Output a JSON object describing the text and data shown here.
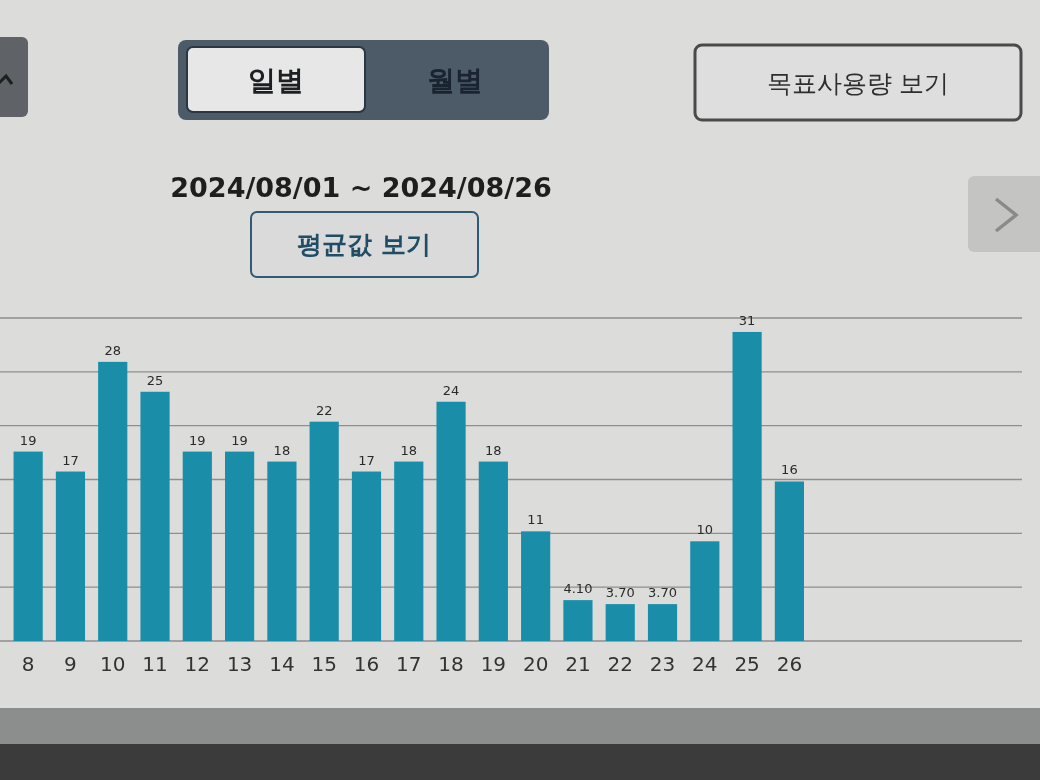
{
  "chart_data": {
    "type": "bar",
    "title": "2024/08/01 ~ 2024/08/26",
    "categories": [
      "8",
      "9",
      "10",
      "11",
      "12",
      "13",
      "14",
      "15",
      "16",
      "17",
      "18",
      "19",
      "20",
      "21",
      "22",
      "23",
      "24",
      "25",
      "26",
      null,
      null,
      null,
      null,
      null
    ],
    "values": [
      19,
      17,
      28,
      25,
      19,
      19,
      18,
      22,
      17,
      18,
      24,
      18,
      11,
      4.1,
      3.7,
      3.7,
      10,
      31,
      16,
      null,
      null,
      null,
      null,
      null
    ],
    "value_labels": [
      "19",
      "17",
      "28",
      "25",
      "19",
      "19",
      "18",
      "22",
      "17",
      "18",
      "24",
      "18",
      "11",
      "4.10",
      "3.70",
      "3.70",
      "10",
      "31",
      "16",
      null,
      null,
      null,
      null,
      null
    ],
    "color": "#1a8ea8",
    "ylim": [
      0,
      32.4
    ],
    "yticks": [
      {
        "value": 0,
        "label": null
      },
      {
        "value": 5.4,
        "label": null
      },
      {
        "value": 10.8,
        "label": null
      },
      {
        "value": 16.2,
        "label": null
      },
      {
        "value": 21.6,
        "label": null
      },
      {
        "value": 27,
        "label": null
      },
      {
        "value": 32.4,
        "label": null
      }
    ],
    "grid": "y",
    "tick_labels": "x",
    "annotations": [
      "일별",
      "월별",
      "목표사용량 보기",
      "평균값 보기"
    ]
  }
}
